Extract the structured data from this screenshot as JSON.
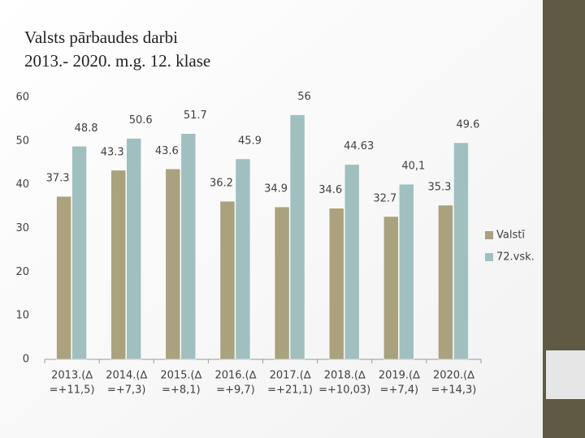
{
  "chart_data": {
    "type": "bar",
    "title": [
      "Valsts pārbaudes darbi",
      "2013.- 2020. m.g.   12. klase"
    ],
    "categories": [
      [
        "2013.(∆",
        "=+11,5)"
      ],
      [
        "2014.(∆",
        "=+7,3)"
      ],
      [
        "2015.(∆",
        "=+8,1)"
      ],
      [
        "2016.(∆",
        "=+9,7)"
      ],
      [
        "2017.(∆",
        "=+21,1)"
      ],
      [
        "2018.(∆",
        "=+10,03)"
      ],
      [
        "2019.(∆",
        "=+7,4)"
      ],
      [
        "2020.(∆",
        "=+14,3)"
      ]
    ],
    "series": [
      {
        "name": "Valstī",
        "color": "#aaa27c",
        "values": [
          37.3,
          43.3,
          43.6,
          36.2,
          34.9,
          34.6,
          32.7,
          35.3
        ]
      },
      {
        "name": "72.vsk.",
        "color": "#a0c0c0",
        "values": [
          48.8,
          50.6,
          51.7,
          45.9,
          56,
          44.63,
          40.1,
          49.6
        ],
        "value_labels": [
          "48.8",
          "50.6",
          "51.7",
          "45.9",
          "56",
          "44.63",
          "40,1",
          "49.6"
        ]
      }
    ],
    "ylim": [
      0,
      60
    ],
    "yticks": [
      0,
      10,
      20,
      30,
      40,
      50,
      60
    ],
    "grid": false,
    "legend": "right"
  }
}
